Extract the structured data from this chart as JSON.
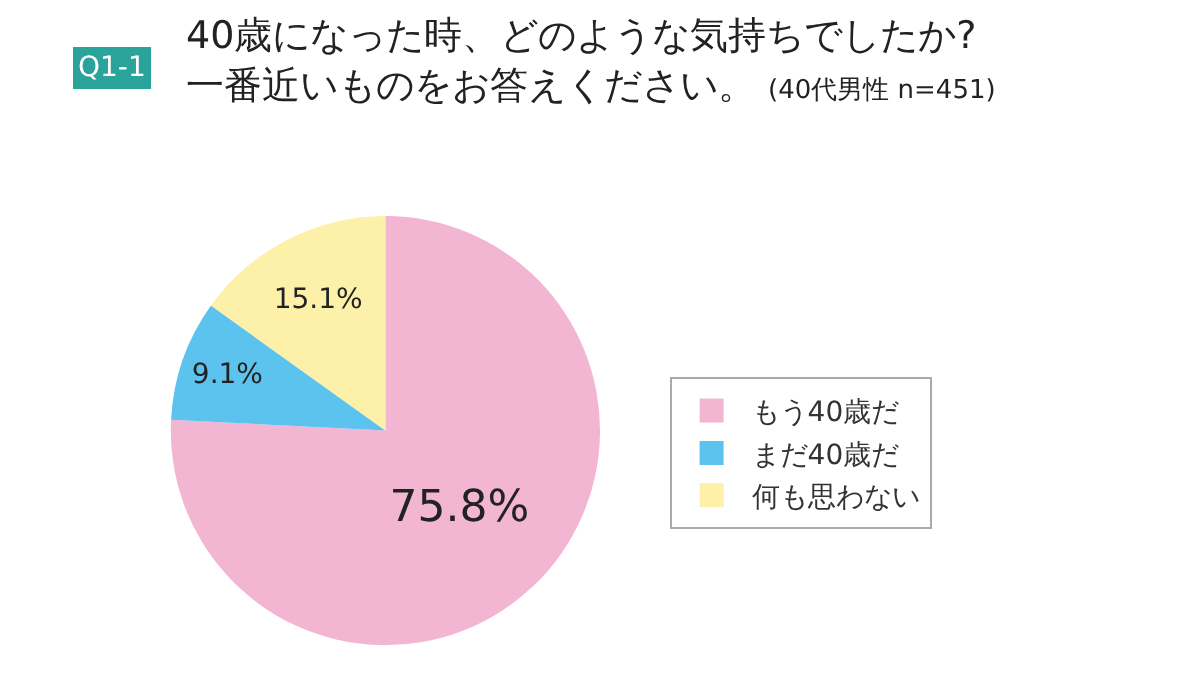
{
  "chart_data": {
    "type": "pie",
    "title": "40歳になった時、どのような気持ちでしたか?\n一番近いものをお答えください。",
    "subtitle": "(40代男性 n=451)",
    "annotations": [
      "Q1-1"
    ],
    "categories": [
      "もう40歳だ",
      "まだ40歳だ",
      "何も思わない"
    ],
    "values": [
      75.8,
      9.1,
      15.1
    ],
    "value_labels": [
      "75.8%",
      "9.1%",
      "15.1%"
    ],
    "colors": [
      "#f2b6d2",
      "#5bc3ee",
      "#fdf0a8"
    ],
    "legend": "right"
  }
}
